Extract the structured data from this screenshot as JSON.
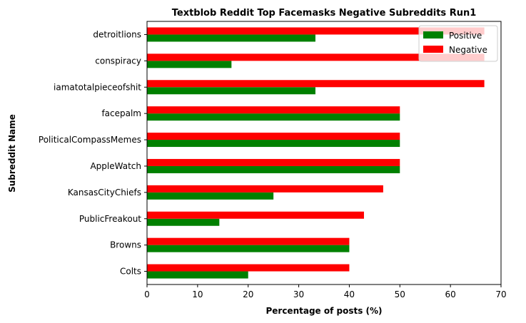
{
  "chart_data": {
    "type": "bar",
    "orientation": "horizontal",
    "title": "Textblob Reddit Top Facemasks Negative Subreddits Run1",
    "xlabel": "Percentage of posts (%)",
    "ylabel": "Subreddit Name",
    "xlim": [
      0,
      70
    ],
    "xticks": [
      0,
      10,
      20,
      30,
      40,
      50,
      60,
      70
    ],
    "grid": false,
    "legend_position": "top-right",
    "categories": [
      "Colts",
      "Browns",
      "PublicFreakout",
      "KansasCityChiefs",
      "AppleWatch",
      "PoliticalCompassMemes",
      "facepalm",
      "iamatotalpieceofshit",
      "conspiracy",
      "detroitlions"
    ],
    "series": [
      {
        "name": "Positive",
        "color": "#008000",
        "values": [
          20,
          40,
          14.3,
          25,
          50,
          50,
          50,
          33.3,
          16.7,
          33.3
        ]
      },
      {
        "name": "Negative",
        "color": "#ff0000",
        "values": [
          40,
          40,
          42.9,
          46.7,
          50,
          50,
          50,
          66.7,
          66.7,
          66.7
        ]
      }
    ]
  }
}
